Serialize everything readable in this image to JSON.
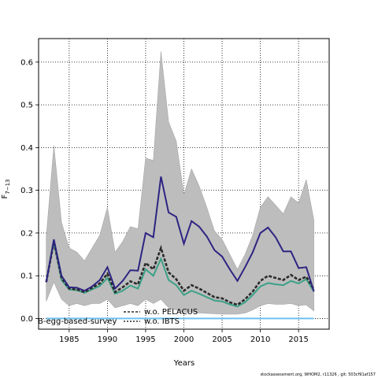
{
  "chart_data": {
    "type": "line",
    "xlabel": "Years",
    "ylabel": "F",
    "ylabel_sub": "7−13",
    "xlim": [
      1981,
      2019
    ],
    "ylim": [
      -0.025,
      0.655
    ],
    "xticks": [
      1985,
      1990,
      1995,
      2000,
      2005,
      2010,
      2015
    ],
    "yticks": [
      0.0,
      0.1,
      0.2,
      0.3,
      0.4,
      0.5,
      0.6
    ],
    "ytick_labels": [
      "0.0",
      "0.1",
      "0.2",
      "0.3",
      "0.4",
      "0.5",
      "0.6"
    ],
    "grid": true,
    "grid_style": "dotted",
    "legend_position": "bottom-left",
    "x": [
      1982,
      1983,
      1984,
      1985,
      1986,
      1987,
      1988,
      1989,
      1990,
      1991,
      1992,
      1993,
      1994,
      1995,
      1996,
      1997,
      1998,
      1999,
      2000,
      2001,
      2002,
      2003,
      2004,
      2005,
      2006,
      2007,
      2008,
      2009,
      2010,
      2011,
      2012,
      2013,
      2014,
      2015,
      2016,
      2017
    ],
    "band": {
      "color": "#bdbdbd",
      "upper": [
        0.19,
        0.405,
        0.225,
        0.165,
        0.155,
        0.135,
        0.165,
        0.195,
        0.26,
        0.155,
        0.18,
        0.215,
        0.21,
        0.375,
        0.37,
        0.625,
        0.46,
        0.415,
        0.29,
        0.35,
        0.31,
        0.26,
        0.205,
        0.185,
        0.15,
        0.115,
        0.15,
        0.195,
        0.26,
        0.285,
        0.265,
        0.245,
        0.285,
        0.27,
        0.325,
        0.23
      ],
      "lower": [
        0.04,
        0.085,
        0.045,
        0.03,
        0.035,
        0.03,
        0.035,
        0.035,
        0.045,
        0.025,
        0.03,
        0.035,
        0.03,
        0.045,
        0.035,
        0.045,
        0.025,
        0.02,
        0.015,
        0.015,
        0.013,
        0.012,
        0.011,
        0.01,
        0.01,
        0.01,
        0.013,
        0.02,
        0.03,
        0.035,
        0.033,
        0.033,
        0.035,
        0.03,
        0.032,
        0.018
      ]
    },
    "series": [
      {
        "name": "",
        "color": "#2d2482",
        "dashed": false,
        "values": [
          0.085,
          0.185,
          0.1,
          0.073,
          0.072,
          0.065,
          0.075,
          0.09,
          0.12,
          0.07,
          0.088,
          0.113,
          0.112,
          0.2,
          0.19,
          0.332,
          0.248,
          0.238,
          0.175,
          0.228,
          0.215,
          0.192,
          0.16,
          0.145,
          0.115,
          0.088,
          0.12,
          0.155,
          0.2,
          0.213,
          0.19,
          0.157,
          0.157,
          0.118,
          0.12,
          0.063
        ]
      },
      {
        "name": "w.o. PELACUS",
        "color": "#2a2a2a",
        "dashed": true,
        "values": [
          0.085,
          0.18,
          0.095,
          0.07,
          0.068,
          0.062,
          0.072,
          0.082,
          0.105,
          0.062,
          0.073,
          0.087,
          0.08,
          0.13,
          0.115,
          0.165,
          0.108,
          0.092,
          0.065,
          0.078,
          0.07,
          0.06,
          0.05,
          0.047,
          0.038,
          0.032,
          0.045,
          0.063,
          0.088,
          0.1,
          0.095,
          0.09,
          0.102,
          0.09,
          0.098,
          0.068
        ]
      },
      {
        "name": "w.o. IBTS",
        "color": "#3aa186",
        "dashed": false,
        "values": [
          0.085,
          0.178,
          0.09,
          0.068,
          0.066,
          0.06,
          0.068,
          0.076,
          0.095,
          0.058,
          0.065,
          0.077,
          0.07,
          0.115,
          0.1,
          0.14,
          0.09,
          0.078,
          0.055,
          0.065,
          0.058,
          0.05,
          0.042,
          0.04,
          0.033,
          0.028,
          0.038,
          0.055,
          0.075,
          0.083,
          0.08,
          0.078,
          0.088,
          0.082,
          0.092,
          0.063
        ]
      },
      {
        "name": "B-egg-based-survey",
        "color": "#6ec2ef",
        "dashed": false,
        "values": [
          0,
          0,
          0,
          0,
          0,
          0,
          0,
          0,
          0,
          0,
          0,
          0,
          0,
          0,
          0,
          0,
          0,
          0,
          0,
          0,
          0,
          0,
          0,
          0,
          0,
          0,
          0,
          0,
          0,
          0,
          0,
          0,
          0,
          0,
          0,
          0
        ]
      }
    ]
  },
  "legend": {
    "label_pelacus": "w.o. PELACUS",
    "label_ibts": "w.o. IBTS",
    "label_egg": "B-egg-based-survey"
  },
  "footer": "stockassessment.org, WHOM2, r11326 , git: 503cf91af157"
}
